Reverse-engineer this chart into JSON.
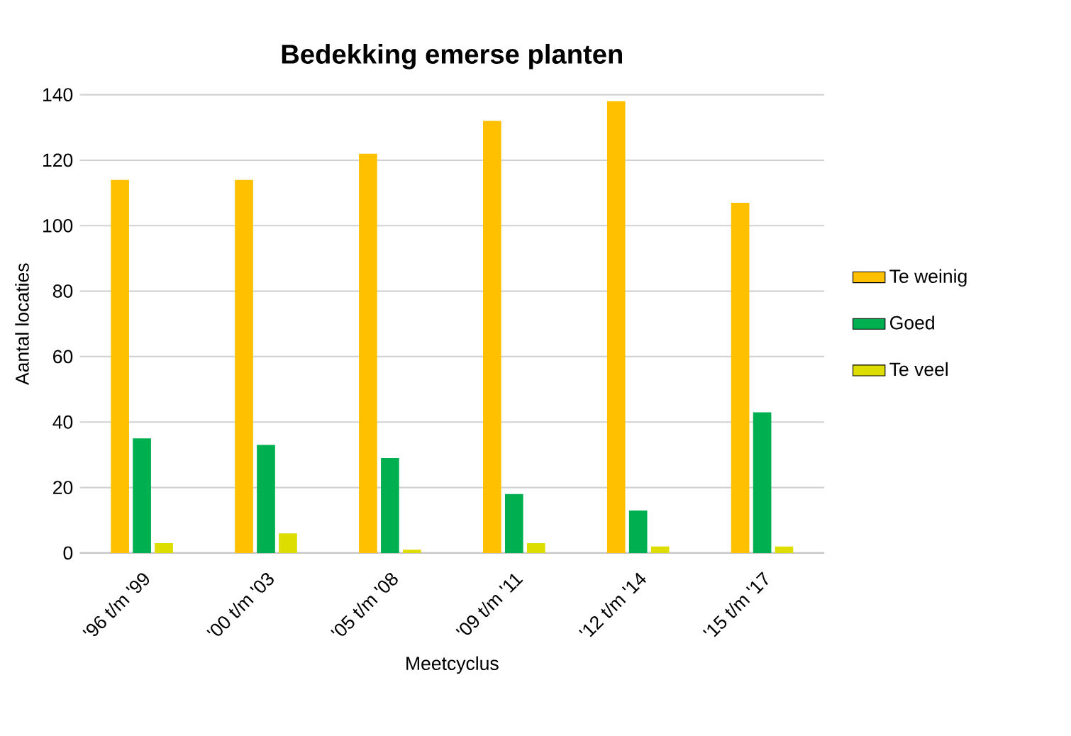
{
  "chart_data": {
    "type": "bar",
    "title": "**Bedekking emerse planten**",
    "xlabel": "Meetcyclus",
    "ylabel": "Aantal locaties",
    "categories": [
      "'96 t/m '99",
      "'00 t/m '03",
      "'05 t/m '08",
      "'09 t/m '11",
      "'12 t/m '14",
      "'15 t/m '17"
    ],
    "series": [
      {
        "name": "Te weinig",
        "color": "#ffc000",
        "values": [
          114,
          114,
          122,
          132,
          138,
          107
        ]
      },
      {
        "name": "Goed",
        "color": "#00b050",
        "values": [
          35,
          33,
          29,
          18,
          13,
          43
        ]
      },
      {
        "name": "Te veel",
        "color": "#dddd00",
        "values": [
          3,
          6,
          1,
          3,
          2,
          2
        ]
      }
    ],
    "ylim": [
      0,
      140
    ],
    "yticks": [
      0,
      20,
      40,
      60,
      80,
      100,
      120,
      140
    ],
    "grid": "y",
    "legend": "right"
  }
}
